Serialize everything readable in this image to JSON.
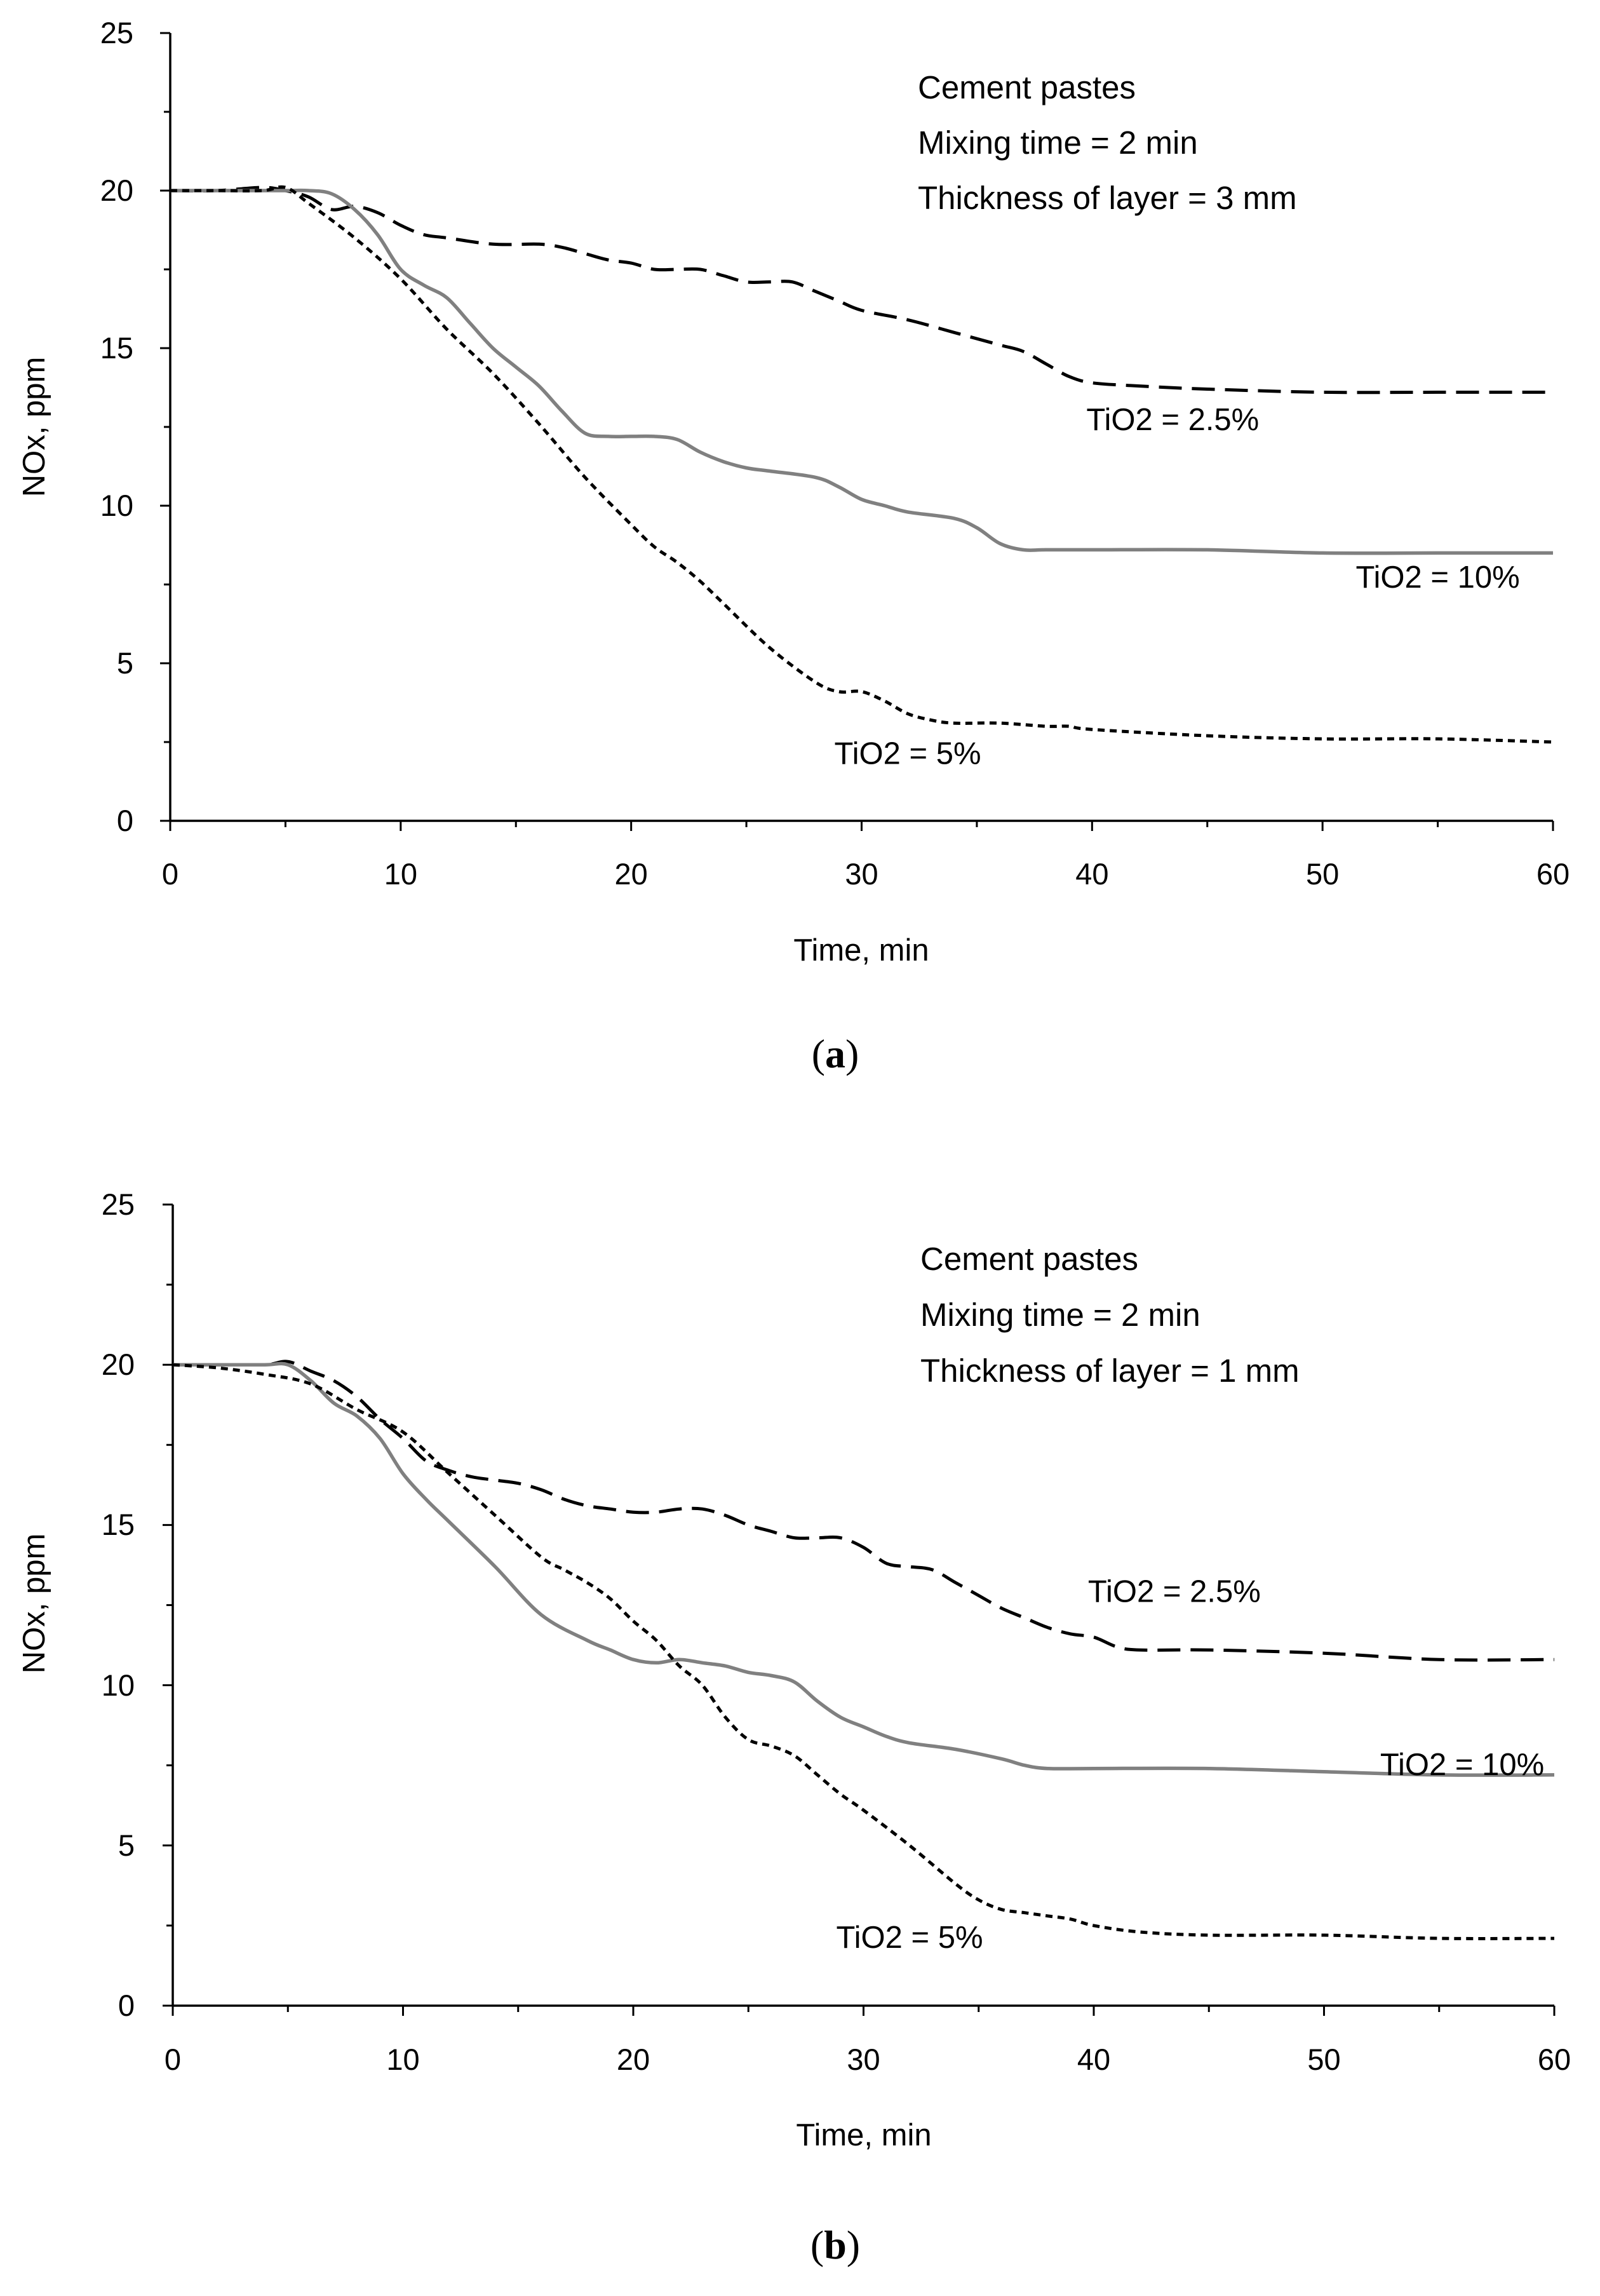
{
  "chart_data": [
    {
      "type": "line",
      "panel_label": "a",
      "xlabel": "Time, min",
      "ylabel": "NOx, ppm",
      "xlim": [
        0,
        60
      ],
      "ylim": [
        0,
        25
      ],
      "xticks": [
        0,
        10,
        20,
        30,
        40,
        50,
        60
      ],
      "yticks": [
        0,
        5,
        10,
        15,
        20,
        25
      ],
      "annotations": [
        "Cement pastes",
        "Mixing time = 2 min",
        "Thickness of layer = 3 mm"
      ],
      "series": [
        {
          "name": "TiO2 = 2.5%",
          "style": "long-dash",
          "color": "#000000",
          "label_pos": [
            43.5,
            12.4
          ],
          "x": [
            0,
            2,
            4,
            5,
            6,
            7,
            8,
            9,
            10,
            11,
            12,
            14,
            16,
            17,
            18,
            19,
            20,
            21,
            22,
            23,
            24,
            25,
            26,
            27,
            28,
            29,
            30,
            32,
            34,
            36,
            37,
            38,
            39,
            40,
            42,
            45,
            50,
            55,
            60
          ],
          "y": [
            20,
            20,
            20.1,
            20,
            19.8,
            19.4,
            19.5,
            19.3,
            18.9,
            18.6,
            18.5,
            18.3,
            18.3,
            18.2,
            18.0,
            17.8,
            17.7,
            17.5,
            17.5,
            17.5,
            17.3,
            17.1,
            17.1,
            17.1,
            16.8,
            16.5,
            16.2,
            15.9,
            15.5,
            15.1,
            14.9,
            14.5,
            14.1,
            13.9,
            13.8,
            13.7,
            13.6,
            13.6,
            13.6
          ]
        },
        {
          "name": "TiO2 = 10%",
          "style": "solid",
          "color": "#808080",
          "label_pos": [
            55,
            7.4
          ],
          "x": [
            0,
            2,
            4,
            5,
            6,
            7,
            8,
            9,
            10,
            11,
            12,
            13,
            14,
            15,
            16,
            17,
            18,
            19,
            20,
            21,
            22,
            23,
            24,
            25,
            26,
            28,
            29,
            30,
            31,
            32,
            34,
            35,
            36,
            37,
            38,
            40,
            45,
            50,
            55,
            60
          ],
          "y": [
            20,
            20,
            20,
            20,
            20,
            19.9,
            19.4,
            18.6,
            17.5,
            17.0,
            16.6,
            15.8,
            15.0,
            14.4,
            13.8,
            13.0,
            12.3,
            12.2,
            12.2,
            12.2,
            12.1,
            11.7,
            11.4,
            11.2,
            11.1,
            10.9,
            10.6,
            10.2,
            10.0,
            9.8,
            9.6,
            9.3,
            8.8,
            8.6,
            8.6,
            8.6,
            8.6,
            8.5,
            8.5,
            8.5
          ]
        },
        {
          "name": "TiO2 = 5%",
          "style": "short-dash",
          "color": "#000000",
          "label_pos": [
            32,
            1.8
          ],
          "x": [
            0,
            2,
            4,
            5,
            6,
            8,
            10,
            12,
            14,
            16,
            18,
            20,
            21,
            22,
            23,
            24,
            26,
            28,
            29,
            30,
            31,
            32,
            33,
            34,
            36,
            38,
            39,
            40,
            45,
            50,
            55,
            60
          ],
          "y": [
            20,
            20,
            20,
            20.1,
            19.6,
            18.5,
            17.2,
            15.6,
            14.2,
            12.6,
            10.9,
            9.4,
            8.7,
            8.2,
            7.6,
            6.9,
            5.5,
            4.4,
            4.1,
            4.1,
            3.8,
            3.4,
            3.2,
            3.1,
            3.1,
            3.0,
            3.0,
            2.9,
            2.7,
            2.6,
            2.6,
            2.5
          ]
        }
      ]
    },
    {
      "type": "line",
      "panel_label": "b",
      "xlabel": "Time, min",
      "ylabel": "NOx, ppm",
      "xlim": [
        0,
        60
      ],
      "ylim": [
        0,
        25
      ],
      "xticks": [
        0,
        10,
        20,
        30,
        40,
        50,
        60
      ],
      "yticks": [
        0,
        5,
        10,
        15,
        20,
        25
      ],
      "annotations": [
        "Cement pastes",
        "Mixing time = 2 min",
        "Thickness of layer = 1 mm"
      ],
      "series": [
        {
          "name": "TiO2 = 2.5%",
          "style": "long-dash",
          "color": "#000000",
          "label_pos": [
            43.5,
            12.6
          ],
          "x": [
            0,
            2,
            4,
            5,
            6,
            7,
            8,
            9,
            10,
            11,
            12,
            13,
            14,
            15,
            16,
            17,
            18,
            19,
            20,
            21,
            22,
            23,
            24,
            25,
            26,
            27,
            28,
            29,
            30,
            31,
            32,
            33,
            34,
            35,
            36,
            37,
            38,
            39,
            40,
            41,
            42,
            45,
            50,
            55,
            60
          ],
          "y": [
            20,
            20,
            20,
            20.1,
            19.8,
            19.5,
            19.0,
            18.3,
            17.7,
            17.0,
            16.7,
            16.5,
            16.4,
            16.3,
            16.1,
            15.8,
            15.6,
            15.5,
            15.4,
            15.4,
            15.5,
            15.5,
            15.3,
            15.0,
            14.8,
            14.6,
            14.6,
            14.6,
            14.3,
            13.8,
            13.7,
            13.6,
            13.2,
            12.8,
            12.4,
            12.1,
            11.8,
            11.6,
            11.5,
            11.2,
            11.1,
            11.1,
            11.0,
            10.8,
            10.8
          ]
        },
        {
          "name": "TiO2 = 10%",
          "style": "solid",
          "color": "#808080",
          "label_pos": [
            56,
            7.2
          ],
          "x": [
            0,
            2,
            4,
            5,
            6,
            7,
            8,
            9,
            10,
            11,
            12,
            14,
            16,
            18,
            19,
            20,
            21,
            22,
            23,
            24,
            25,
            26,
            27,
            28,
            29,
            30,
            31,
            32,
            34,
            36,
            37,
            38,
            40,
            45,
            50,
            55,
            60
          ],
          "y": [
            20,
            20,
            20,
            20,
            19.5,
            18.8,
            18.4,
            17.7,
            16.6,
            15.8,
            15.1,
            13.7,
            12.2,
            11.4,
            11.1,
            10.8,
            10.7,
            10.8,
            10.7,
            10.6,
            10.4,
            10.3,
            10.1,
            9.5,
            9.0,
            8.7,
            8.4,
            8.2,
            8.0,
            7.7,
            7.5,
            7.4,
            7.4,
            7.4,
            7.3,
            7.2,
            7.2
          ]
        },
        {
          "name": "TiO2 = 5%",
          "style": "short-dash",
          "color": "#000000",
          "label_pos": [
            32,
            1.8
          ],
          "x": [
            0,
            2,
            4,
            6,
            8,
            10,
            12,
            14,
            16,
            17,
            18,
            19,
            20,
            21,
            22,
            23,
            24,
            25,
            26,
            27,
            28,
            29,
            30,
            32,
            34,
            35,
            36,
            37,
            38,
            39,
            40,
            42,
            45,
            50,
            55,
            60
          ],
          "y": [
            20,
            19.9,
            19.7,
            19.4,
            18.6,
            17.9,
            16.6,
            15.3,
            14.0,
            13.6,
            13.2,
            12.7,
            12.0,
            11.4,
            10.6,
            10.0,
            9.0,
            8.3,
            8.1,
            7.8,
            7.2,
            6.6,
            6.1,
            5.0,
            3.8,
            3.3,
            3.0,
            2.9,
            2.8,
            2.7,
            2.5,
            2.3,
            2.2,
            2.2,
            2.1,
            2.1
          ]
        }
      ]
    }
  ]
}
